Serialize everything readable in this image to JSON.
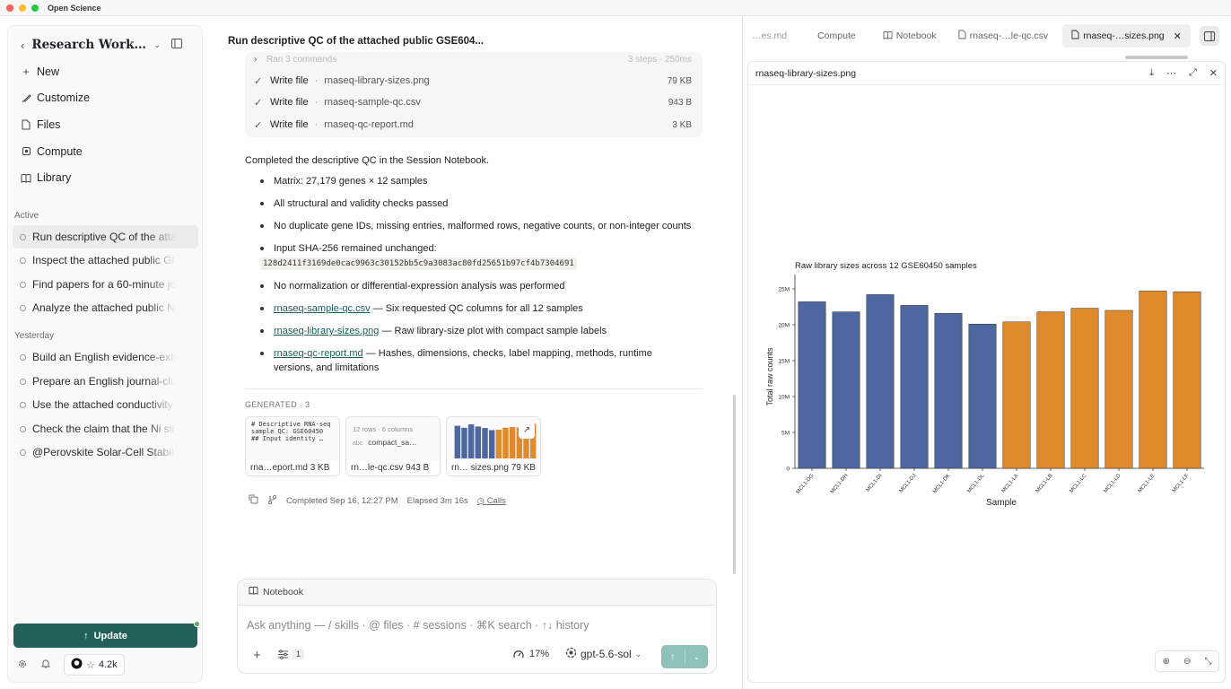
{
  "app": {
    "title": "Open Science"
  },
  "sidebar": {
    "workspace_title": "Research Workflo...",
    "nav": [
      {
        "label": "New",
        "icon": "plus-icon"
      },
      {
        "label": "Customize",
        "icon": "brush-icon"
      },
      {
        "label": "Files",
        "icon": "file-icon"
      },
      {
        "label": "Compute",
        "icon": "chip-icon"
      },
      {
        "label": "Library",
        "icon": "book-icon"
      }
    ],
    "active_label": "Active",
    "active_sessions": [
      "Run descriptive QC of the attached public GSE60450",
      "Inspect the attached public GEO",
      "Find papers for a 60-minute journal club",
      "Analyze the attached public NS"
    ],
    "yesterday_label": "Yesterday",
    "yesterday_sessions": [
      "Build an English evidence-extraction",
      "Prepare an English journal-club",
      "Use the attached conductivity",
      "Check the claim that the Ni single",
      "@Perovskite Solar-Cell Stability"
    ],
    "update_label": "Update",
    "github_stars": "4.2k"
  },
  "main": {
    "title": "Run descriptive QC of the attached public GSE604...",
    "faded_row": {
      "label": "Ran 3 commands",
      "meta": "3 steps · 250ms"
    },
    "tool_rows": [
      {
        "action": "Write file",
        "file": "rnaseq-library-sizes.png",
        "size": "79 KB"
      },
      {
        "action": "Write file",
        "file": "rnaseq-sample-qc.csv",
        "size": "943 B"
      },
      {
        "action": "Write file",
        "file": "rnaseq-qc-report.md",
        "size": "3 KB"
      }
    ],
    "summary": "Completed the descriptive QC in the Session Notebook.",
    "bullets": {
      "b1": "Matrix: 27,179 genes × 12 samples",
      "b2": "All structural and validity checks passed",
      "b3": "No duplicate gene IDs, missing entries, malformed rows, negative counts, or non-integer counts",
      "b4": "Input SHA-256 remained unchanged:",
      "hash": "128d2411f3169de0cac9963c30152bb5c9a3083ac80fd25651b97cf4b7304691",
      "b5": "No normalization or differential-expression analysis was performed",
      "b6_link": "rnaseq-sample-qc.csv",
      "b6_text": " — Six requested QC columns for all 12 samples",
      "b7_link": "rnaseq-library-sizes.png",
      "b7_text": " — Raw library-size plot with compact sample labels",
      "b8_link": "rnaseq-qc-report.md",
      "b8_text": " — Hashes, dimensions, checks, label mapping, methods, runtime versions, and limitations"
    },
    "generated_label": "GENERATED · 3",
    "cards": [
      {
        "preview": "# Descriptive RNA-seq sample QC: GSE60450\n## Input identity …",
        "name": "rna…eport.md",
        "size": "3 KB"
      },
      {
        "preview_top": "12 rows · 6 columns",
        "preview_col": "compact_sa…",
        "name": "rn…le-qc.csv",
        "size": "943 B"
      },
      {
        "name": "rn… sizes.png",
        "size": "79 KB"
      }
    ],
    "meta": {
      "completed": "Completed Sep 16, 12:27 PM",
      "elapsed": "Elapsed 3m 16s",
      "calls": "Calls"
    }
  },
  "composer": {
    "chip": "Notebook",
    "placeholder": "Ask anything — / skills · @ files · # sessions · ⌘K search · ↑↓ history",
    "badge": "1",
    "context_pct": "17%",
    "model": "gpt-5.6-sol"
  },
  "right_pane": {
    "tabs": [
      {
        "label": "…es.md",
        "icon": ""
      },
      {
        "label": "Compute",
        "icon": ""
      },
      {
        "label": "Notebook",
        "icon": "book-icon"
      },
      {
        "label": "rnaseq-…le-qc.csv",
        "icon": "file-icon"
      },
      {
        "label": "rnaseq-…sizes.png",
        "icon": "file-icon",
        "active": true
      }
    ],
    "viewer_title": "rnaseq-library-sizes.png"
  },
  "chart_data": {
    "type": "bar",
    "title": "Raw library sizes across 12 GSE60450 samples",
    "xlabel": "Sample",
    "ylabel": "Total raw counts",
    "categories": [
      "MCL1-DG",
      "MCL1-DH",
      "MCL1-DI",
      "MCL1-DJ",
      "MCL1-DK",
      "MCL1-DL",
      "MCL1-LA",
      "MCL1-LB",
      "MCL1-LC",
      "MCL1-LD",
      "MCL1-LE",
      "MCL1-LF"
    ],
    "values": [
      23.2,
      21.8,
      24.2,
      22.7,
      21.6,
      20.1,
      20.4,
      21.8,
      22.3,
      22.0,
      24.7,
      24.6
    ],
    "value_unit": "millions",
    "colors": [
      "#4e67a1",
      "#4e67a1",
      "#4e67a1",
      "#4e67a1",
      "#4e67a1",
      "#4e67a1",
      "#e08a2e",
      "#e08a2e",
      "#e08a2e",
      "#e08a2e",
      "#e08a2e",
      "#e08a2e"
    ],
    "yticks": [
      "0",
      "5M",
      "10M",
      "15M",
      "20M",
      "25M"
    ],
    "ylim": [
      0,
      25.5
    ],
    "grid": false
  }
}
